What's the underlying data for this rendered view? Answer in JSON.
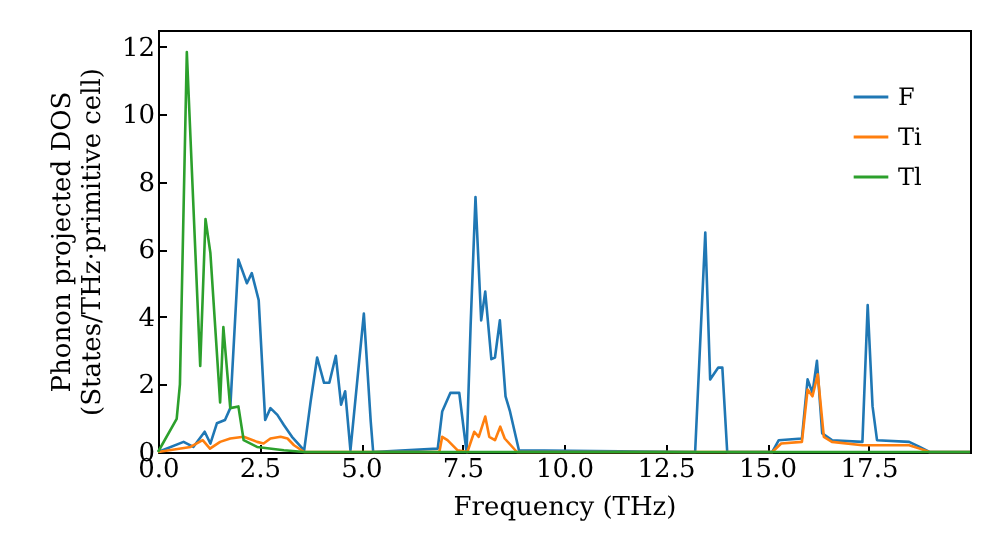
{
  "chart_data": {
    "type": "line",
    "xlabel": "Frequency (THz)",
    "ylabel": "Phonon projected DOS\n(States/THz·primitive cell)",
    "xlim": [
      0,
      20
    ],
    "ylim": [
      0,
      12.5
    ],
    "xticks": [
      {
        "value": 0,
        "label": "0.0"
      },
      {
        "value": 2.5,
        "label": "2.5"
      },
      {
        "value": 5,
        "label": "5.0"
      },
      {
        "value": 7.5,
        "label": "7.5"
      },
      {
        "value": 10,
        "label": "10.0"
      },
      {
        "value": 12.5,
        "label": "12.5"
      },
      {
        "value": 15,
        "label": "15.0"
      },
      {
        "value": 17.5,
        "label": "17.5"
      }
    ],
    "yticks": [
      0,
      2,
      4,
      6,
      8,
      10,
      12
    ],
    "legend": "top right",
    "grid": false,
    "series": [
      {
        "name": "F",
        "color": "#1f77b4",
        "x": [
          0,
          0.63,
          0.87,
          1.15,
          1.29,
          1.45,
          1.65,
          1.78,
          1.98,
          2.19,
          2.31,
          2.48,
          2.64,
          2.77,
          2.94,
          3.1,
          3.3,
          3.6,
          3.76,
          3.92,
          4.09,
          4.22,
          4.38,
          4.51,
          4.61,
          4.74,
          5.07,
          5.24,
          5.3,
          6.89,
          7.0,
          7.2,
          7.42,
          7.6,
          7.7,
          7.82,
          7.96,
          8.06,
          8.21,
          8.3,
          8.42,
          8.56,
          8.67,
          8.89,
          13.23,
          13.48,
          13.6,
          13.8,
          13.9,
          14.02,
          15.13,
          15.29,
          15.86,
          16.0,
          16.12,
          16.23,
          16.36,
          16.6,
          17.35,
          17.48,
          17.6,
          17.71,
          18.5,
          18.76,
          19.0,
          20
        ],
        "values": [
          0,
          0.3,
          0.15,
          0.6,
          0.25,
          0.85,
          0.95,
          1.3,
          5.7,
          5.0,
          5.3,
          4.5,
          0.95,
          1.3,
          1.1,
          0.8,
          0.45,
          0.05,
          1.5,
          2.8,
          2.05,
          2.05,
          2.85,
          1.4,
          1.8,
          0.05,
          4.1,
          0.9,
          0,
          0.1,
          1.2,
          1.75,
          1.75,
          0,
          3.75,
          7.55,
          3.9,
          4.75,
          2.75,
          2.8,
          3.9,
          1.65,
          1.2,
          0.05,
          0,
          6.5,
          2.15,
          2.5,
          2.5,
          0,
          0,
          0.35,
          0.4,
          2.15,
          1.75,
          2.7,
          0.55,
          0.35,
          0.3,
          4.35,
          1.35,
          0.35,
          0.3,
          0.15,
          0,
          0
        ]
      },
      {
        "name": "Ti",
        "color": "#ff7f0e",
        "x": [
          0,
          0.8,
          1.1,
          1.28,
          1.53,
          1.78,
          2.11,
          2.44,
          2.6,
          2.77,
          3.02,
          3.19,
          3.35,
          3.6,
          6.93,
          7.0,
          7.13,
          7.38,
          7.62,
          7.79,
          7.9,
          8.06,
          8.16,
          8.3,
          8.43,
          8.54,
          8.84,
          15.13,
          15.35,
          15.86,
          16.0,
          16.12,
          16.25,
          16.4,
          16.6,
          17.35,
          18.5,
          18.76,
          19.0,
          20
        ],
        "values": [
          0,
          0.15,
          0.35,
          0.1,
          0.3,
          0.4,
          0.45,
          0.3,
          0.25,
          0.4,
          0.45,
          0.4,
          0.2,
          0,
          0,
          0.45,
          0.35,
          0.05,
          0,
          0.6,
          0.45,
          1.05,
          0.45,
          0.35,
          0.75,
          0.4,
          0,
          0,
          0.25,
          0.3,
          1.85,
          1.65,
          2.3,
          0.45,
          0.3,
          0.2,
          0.2,
          0.1,
          0,
          0
        ]
      },
      {
        "name": "Tl",
        "color": "#2ca02c",
        "x": [
          0,
          0.46,
          0.54,
          0.71,
          1.04,
          1.17,
          1.29,
          1.53,
          1.61,
          1.78,
          1.98,
          2.11,
          2.44,
          3.1,
          3.6,
          20
        ],
        "values": [
          0,
          0.98,
          2.0,
          11.85,
          2.55,
          6.9,
          5.9,
          1.47,
          3.7,
          1.3,
          1.35,
          0.35,
          0.15,
          0.05,
          0,
          0
        ]
      }
    ]
  }
}
